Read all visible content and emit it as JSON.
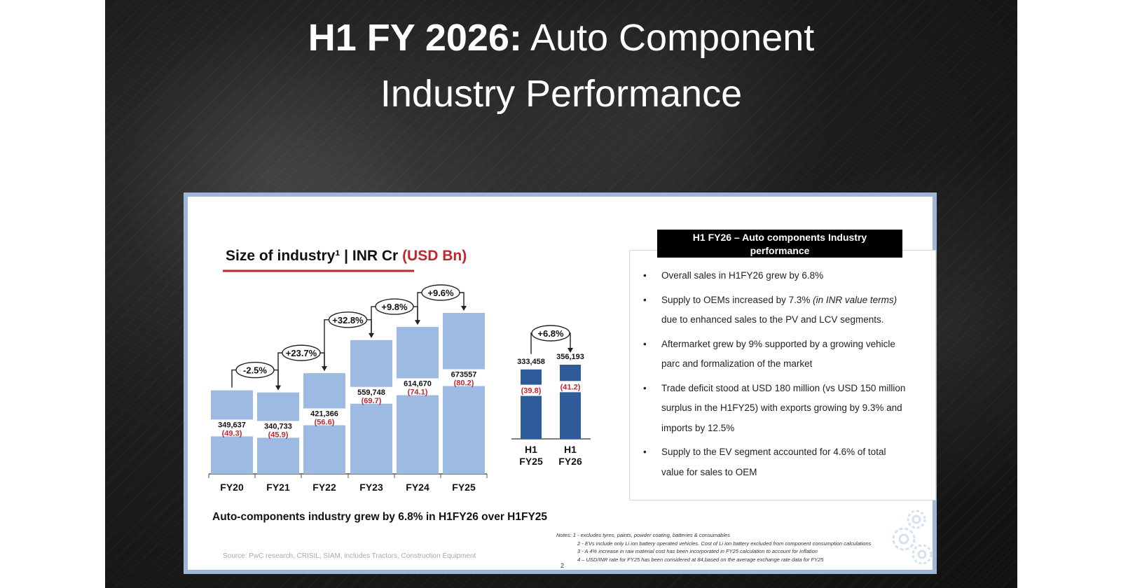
{
  "title": {
    "bold": "H1 FY 2026:",
    "rest_line1": " Auto Component",
    "line2": "Industry Performance"
  },
  "chart_data": [
    {
      "type": "bar",
      "title": "Size of industry¹ | INR Cr (USD Bn)",
      "title_main": "Size of industry¹ | INR Cr ",
      "title_usd": "(USD Bn)",
      "categories": [
        "FY20",
        "FY21",
        "FY22",
        "FY23",
        "FY24",
        "FY25"
      ],
      "values": [
        349637,
        340733,
        421366,
        559748,
        614670,
        673557
      ],
      "value_labels": [
        "349,637",
        "340,733",
        "421,366",
        "559,748",
        "614,670",
        "673557"
      ],
      "usd_labels": [
        "(49.3)",
        "(45.9)",
        "(56.6)",
        "(69.7)",
        "(74.1)",
        "(80.2)"
      ],
      "growth": [
        "-2.5%",
        "+23.7%",
        "+32.8%",
        "+9.8%",
        "+9.6%"
      ],
      "ylim": [
        0,
        673557
      ]
    },
    {
      "type": "bar",
      "categories": [
        [
          "H1",
          "FY25"
        ],
        [
          "H1",
          "FY26"
        ]
      ],
      "values": [
        333458,
        356193
      ],
      "value_labels": [
        "333,458",
        "356,193"
      ],
      "usd_labels": [
        "(39.8)",
        "(41.2)"
      ],
      "growth": [
        "+6.8%"
      ],
      "ylim": [
        0,
        356193
      ]
    }
  ],
  "subtitle": "Auto-components industry grew by 6.8% in H1FY26 over H1FY25",
  "performance": {
    "header": [
      "H1 FY26 – Auto components Industry",
      "performance"
    ],
    "bullets": [
      {
        "text": "Overall sales in H1FY26 grew by 6.8%"
      },
      {
        "text": "Supply to OEMs increased by 7.3% ",
        "italic": "(in INR value terms)",
        "text_after": " due to enhanced sales to the PV and LCV segments."
      },
      {
        "text": "Aftermarket grew by 9% supported by a growing vehicle parc and formalization of the market"
      },
      {
        "text": "Trade deficit stood at USD 180 million (vs USD 150 million surplus in the H1FY25) with exports growing by 9.3% and imports by 12.5%"
      },
      {
        "text": "Supply to the EV segment accounted for 4.6% of total value for sales to OEM"
      }
    ]
  },
  "notes": [
    "Notes: 1 - excludes tyres, paints, powder coating, batteries & consumables",
    "2 - EVs include only Li ion battery operated vehicles. Cost of Li ion battery excluded from component consumption calculations",
    "3 - A 4% increase in raw material cost has been incorporated in FY25 calculation to account for inflation",
    "4 – USD/INR rate for FY25 has been considered at 84,based on the average exchange rate data for FY25"
  ],
  "source": "Source: PwC research, CRISIL, SIAM, includes Tractors, Construction Equipment",
  "page_number": "2",
  "colors": {
    "bar_light": "#9dbbe2",
    "bar_dark": "#2e5c9a",
    "usd_red": "#c0272d",
    "frame": "#9fb6d6"
  }
}
